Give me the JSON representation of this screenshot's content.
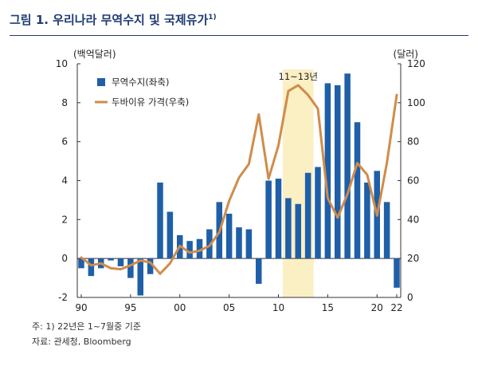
{
  "title": {
    "text": "그림 1. 우리나라 무역수지 및 국제유가",
    "superscript": "1)"
  },
  "notes": [
    "주: 1) 22년은 1~7월중 기준",
    "자료: 관세청, Bloomberg"
  ],
  "colors": {
    "title": "#1f3c73",
    "bar": "#1f5fa8",
    "line": "#d08c4a",
    "highlight": "#fbefc4"
  },
  "chart_data": {
    "type": "bar+line",
    "left_axis": {
      "unit_label": "(백억달러)",
      "ylim": [
        -2,
        10
      ],
      "ticks": [
        "-2",
        "0",
        "2",
        "4",
        "6",
        "8",
        "10"
      ]
    },
    "right_axis": {
      "unit_label": "(달러)",
      "ylim": [
        0,
        120
      ],
      "ticks": [
        "0",
        "20",
        "40",
        "60",
        "80",
        "100",
        "120"
      ]
    },
    "x_ticks": [
      "90",
      "95",
      "00",
      "05",
      "10",
      "15",
      "20",
      "22"
    ],
    "x_tick_years": [
      1990,
      1995,
      2000,
      2005,
      2010,
      2015,
      2020,
      2022
    ],
    "years": [
      1990,
      1991,
      1992,
      1993,
      1994,
      1995,
      1996,
      1997,
      1998,
      1999,
      2000,
      2001,
      2002,
      2003,
      2004,
      2005,
      2006,
      2007,
      2008,
      2009,
      2010,
      2011,
      2012,
      2013,
      2014,
      2015,
      2016,
      2017,
      2018,
      2019,
      2020,
      2021,
      2022
    ],
    "series": [
      {
        "name": "무역수지(좌축)",
        "type": "bar",
        "axis": "left",
        "values": [
          -0.5,
          -0.9,
          -0.5,
          -0.1,
          -0.4,
          -1.0,
          -1.9,
          -0.8,
          3.9,
          2.4,
          1.2,
          0.9,
          1.0,
          1.5,
          2.9,
          2.3,
          1.6,
          1.5,
          -1.3,
          4.0,
          4.1,
          3.1,
          2.8,
          4.4,
          4.7,
          9.0,
          8.9,
          9.5,
          7.0,
          3.9,
          4.5,
          2.9,
          -1.5
        ]
      },
      {
        "name": "두바이유 가격(우축)",
        "type": "line",
        "axis": "right",
        "values": [
          20.5,
          16.5,
          17.5,
          15,
          14.5,
          16.5,
          19,
          18,
          12.2,
          17.5,
          26.5,
          23,
          24,
          26.5,
          33.5,
          49.5,
          61.5,
          68.5,
          94,
          61,
          78,
          106,
          109,
          104,
          97,
          51,
          41,
          53,
          69,
          63,
          42,
          69,
          104
        ]
      }
    ],
    "annotations": [
      {
        "label": "11~13년",
        "x_range": [
          2011,
          2013
        ]
      }
    ]
  }
}
